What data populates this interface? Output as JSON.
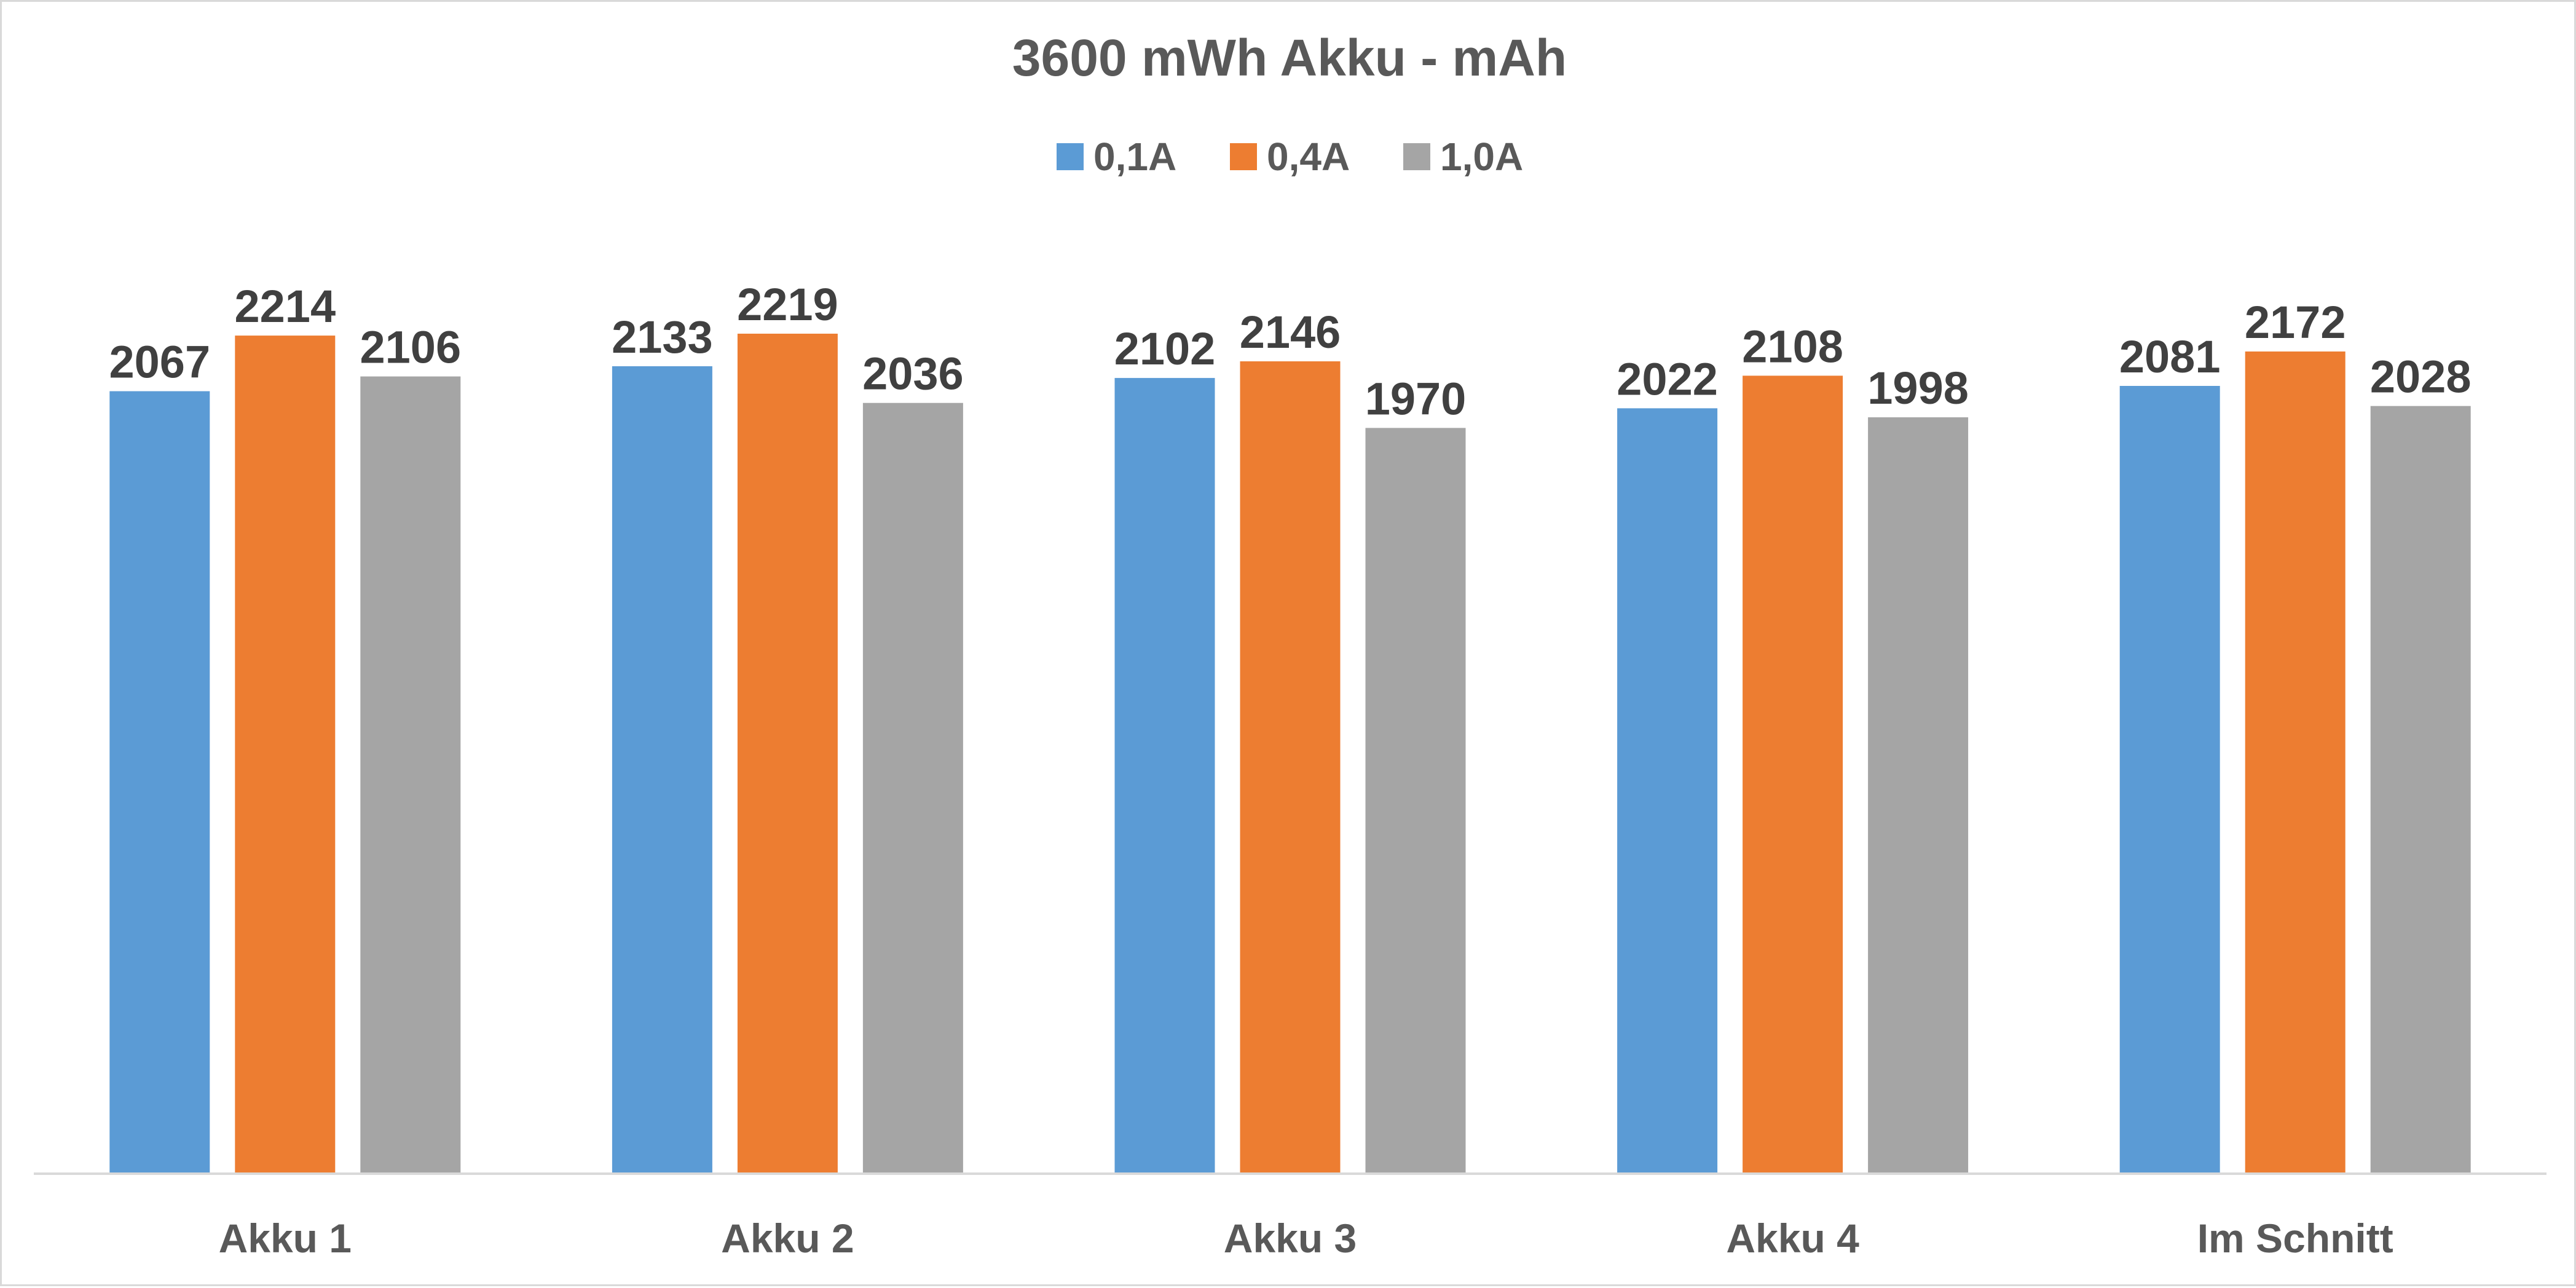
{
  "chart_data": {
    "type": "bar",
    "title": "3600 mWh Akku - mAh",
    "xlabel": "",
    "ylabel": "",
    "categories": [
      "Akku 1",
      "Akku 2",
      "Akku 3",
      "Akku 4",
      "Im Schnitt"
    ],
    "series": [
      {
        "name": "0,1A",
        "color": "#5b9bd5",
        "values": [
          2067,
          2133,
          2102,
          2022,
          2081
        ]
      },
      {
        "name": "0,4A",
        "color": "#ed7d31",
        "values": [
          2214,
          2219,
          2146,
          2108,
          2172
        ]
      },
      {
        "name": "1,0A",
        "color": "#a5a5a5",
        "values": [
          2106,
          2036,
          1970,
          1998,
          2028
        ]
      }
    ],
    "ylim": [
      0,
      2219
    ],
    "grid": false,
    "legend": "top",
    "data_labels": true
  }
}
